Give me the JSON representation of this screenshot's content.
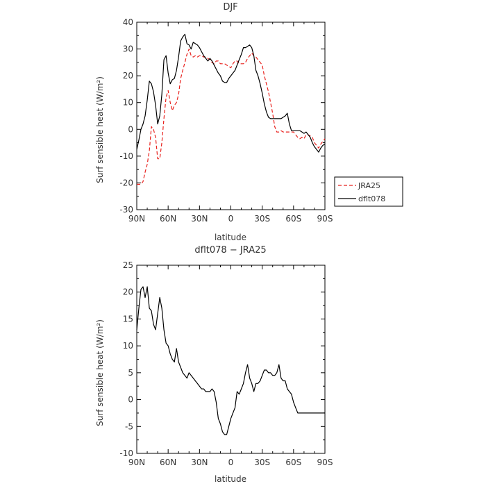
{
  "chart_data": [
    {
      "type": "line",
      "title": "DJF",
      "xlabel": "latitude",
      "ylabel": "Surf sensible heat (W/m²)",
      "x_ticks": [
        "90N",
        "60N",
        "30N",
        "0",
        "30S",
        "60S",
        "90S"
      ],
      "x_tick_values": [
        90,
        60,
        30,
        0,
        -30,
        -60,
        -90
      ],
      "xlim": [
        90,
        -90
      ],
      "ylim": [
        -30,
        40
      ],
      "y_ticks": [
        -30,
        -20,
        -10,
        0,
        10,
        20,
        30,
        40
      ],
      "legend_position": "outside-right",
      "series": [
        {
          "name": "JRA25",
          "color": "#e8201c",
          "dash": "dashed",
          "x": [
            90,
            88,
            86,
            84,
            82,
            80,
            78,
            76,
            74,
            72,
            70,
            68,
            66,
            64,
            62,
            60,
            58,
            56,
            54,
            52,
            50,
            48,
            46,
            44,
            42,
            40,
            38,
            36,
            34,
            32,
            30,
            28,
            26,
            24,
            22,
            20,
            18,
            16,
            14,
            12,
            10,
            8,
            6,
            4,
            2,
            0,
            -2,
            -4,
            -6,
            -8,
            -10,
            -12,
            -14,
            -16,
            -18,
            -20,
            -22,
            -24,
            -26,
            -28,
            -30,
            -32,
            -34,
            -36,
            -38,
            -40,
            -42,
            -44,
            -46,
            -48,
            -50,
            -52,
            -54,
            -56,
            -58,
            -60,
            -62,
            -64,
            -66,
            -68,
            -70,
            -72,
            -74,
            -76,
            -78,
            -80,
            -82,
            -84,
            -86,
            -88,
            -90
          ],
          "y": [
            -20.5,
            -20.5,
            -20.5,
            -19.5,
            -16,
            -13,
            -8,
            1,
            0,
            -3,
            -11,
            -11,
            -5,
            4,
            12,
            14.5,
            10,
            7,
            9,
            10,
            13,
            19,
            22,
            25,
            28,
            30,
            27.5,
            27,
            27.5,
            27,
            27.5,
            27.5,
            27,
            27,
            26.5,
            26,
            25,
            24.5,
            25.5,
            25.5,
            24.5,
            24.5,
            24.5,
            24,
            23.5,
            23,
            24.5,
            25.5,
            25.5,
            24.5,
            24.5,
            24.5,
            25,
            26.5,
            27.5,
            28.5,
            27.5,
            27,
            26,
            25,
            24,
            20,
            17,
            14,
            10,
            6,
            1,
            -1,
            -1,
            -0.5,
            -1,
            -1,
            -1,
            -1,
            -1,
            -1,
            -2,
            -3,
            -3.5,
            -3,
            -3.5,
            -2,
            -2,
            -2.5,
            -3,
            -5,
            -6,
            -7,
            -5.5,
            -4.5,
            -3.5
          ]
        },
        {
          "name": "dflt078",
          "color": "#000000",
          "dash": "solid",
          "x": [
            90,
            88,
            86,
            84,
            82,
            80,
            78,
            76,
            74,
            72,
            70,
            68,
            66,
            64,
            62,
            60,
            58,
            56,
            54,
            52,
            50,
            48,
            46,
            44,
            42,
            40,
            38,
            36,
            34,
            32,
            30,
            28,
            26,
            24,
            22,
            20,
            18,
            16,
            14,
            12,
            10,
            8,
            6,
            4,
            2,
            0,
            -2,
            -4,
            -6,
            -8,
            -10,
            -12,
            -14,
            -16,
            -18,
            -20,
            -22,
            -24,
            -26,
            -28,
            -30,
            -32,
            -34,
            -36,
            -38,
            -40,
            -42,
            -44,
            -46,
            -48,
            -50,
            -52,
            -54,
            -56,
            -58,
            -60,
            -62,
            -64,
            -66,
            -68,
            -70,
            -72,
            -74,
            -76,
            -78,
            -80,
            -82,
            -84,
            -86,
            -88,
            -90
          ],
          "y": [
            -7.5,
            -4,
            0,
            2,
            5,
            11,
            18,
            17,
            14,
            9,
            2,
            5,
            13,
            26,
            27.5,
            21,
            17,
            18.5,
            19,
            22,
            27,
            33,
            34.5,
            35.5,
            32,
            31.5,
            30,
            32.5,
            32,
            31.5,
            30.5,
            29,
            27.5,
            26.5,
            25.5,
            26.5,
            25.5,
            24,
            22.5,
            21,
            20,
            18,
            17.5,
            17.5,
            19,
            20,
            21,
            22,
            24,
            26,
            28,
            30.5,
            30.5,
            31,
            31.5,
            30.5,
            27.5,
            22,
            20,
            17,
            13.5,
            9.5,
            6.5,
            4.5,
            4,
            4,
            4,
            4,
            4,
            4,
            4.5,
            5,
            6,
            2,
            -0.5,
            -0.5,
            -0.5,
            -0.5,
            -0.5,
            -1,
            -1.5,
            -1,
            -2,
            -3,
            -5,
            -6.5,
            -7.5,
            -8.5,
            -7,
            -6,
            -5.5
          ]
        }
      ]
    },
    {
      "type": "line",
      "title": "dflt078 − JRA25",
      "xlabel": "latitude",
      "ylabel": "Surf sensible heat (W/m²)",
      "x_ticks": [
        "90N",
        "60N",
        "30N",
        "0",
        "30S",
        "60S",
        "90S"
      ],
      "x_tick_values": [
        90,
        60,
        30,
        0,
        -30,
        -60,
        -90
      ],
      "xlim": [
        90,
        -90
      ],
      "ylim": [
        -10,
        25
      ],
      "y_ticks": [
        -10,
        -5,
        0,
        5,
        10,
        15,
        20,
        25
      ],
      "series": [
        {
          "color": "#000000",
          "dash": "solid",
          "x": [
            90,
            88,
            86,
            84,
            82,
            80,
            78,
            76,
            74,
            72,
            70,
            68,
            66,
            64,
            62,
            60,
            58,
            56,
            54,
            52,
            50,
            48,
            46,
            44,
            42,
            40,
            38,
            36,
            34,
            32,
            30,
            28,
            26,
            24,
            22,
            20,
            18,
            16,
            14,
            12,
            10,
            8,
            6,
            4,
            2,
            0,
            -2,
            -4,
            -6,
            -8,
            -10,
            -12,
            -14,
            -16,
            -18,
            -20,
            -22,
            -24,
            -26,
            -28,
            -30,
            -32,
            -34,
            -36,
            -38,
            -40,
            -42,
            -44,
            -46,
            -48,
            -50,
            -52,
            -54,
            -56,
            -58,
            -60,
            -62,
            -64,
            -66,
            -68,
            -70,
            -72,
            -74,
            -76,
            -78,
            -80,
            -82,
            -84,
            -86,
            -88,
            -90
          ],
          "y": [
            13,
            17,
            20.5,
            21,
            19,
            21,
            17,
            16.5,
            14,
            13,
            16,
            19,
            17,
            13,
            10.5,
            10,
            8.5,
            7.5,
            7,
            9.5,
            7,
            6,
            5,
            4.5,
            4,
            5,
            4.5,
            4,
            3.5,
            3,
            2.5,
            2,
            2,
            1.5,
            1.5,
            1.5,
            2,
            1.5,
            -0.5,
            -3.5,
            -4.5,
            -6,
            -6.5,
            -6.5,
            -5,
            -3.5,
            -2.5,
            -1.5,
            1.5,
            1,
            2,
            3,
            5,
            6.5,
            4,
            3,
            1.5,
            3,
            3,
            3.5,
            4.5,
            5.5,
            5.5,
            5,
            5,
            4.5,
            4.5,
            5,
            6.5,
            4,
            3.5,
            3.5,
            2,
            1.5,
            1,
            -0.5,
            -1.5,
            -2.5,
            -2.5,
            -2.5,
            -2.5,
            -2.5,
            -2.5,
            -2.5,
            -2.5,
            -2.5,
            -2.5,
            -2.5,
            -2.5,
            -2.5,
            -2.5
          ]
        }
      ]
    }
  ]
}
